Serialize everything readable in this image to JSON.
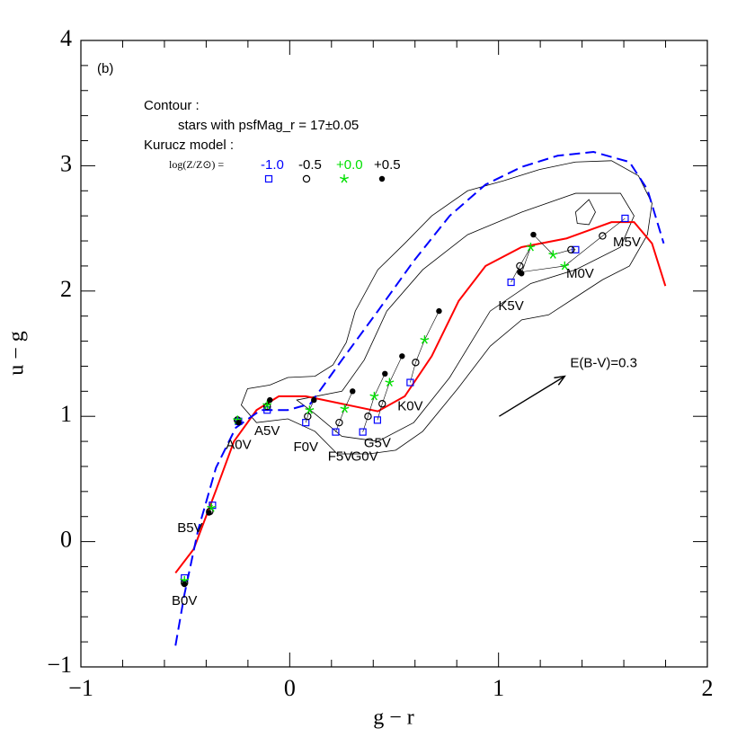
{
  "chart_data": {
    "type": "scatter",
    "panel_label": "(b)",
    "xlabel": "g − r",
    "ylabel": "u − g",
    "xlim": [
      -1,
      2
    ],
    "ylim": [
      -1,
      4
    ],
    "xticks": [
      {
        "value": -1,
        "label": "−1"
      },
      0,
      1,
      2
    ],
    "yticks": [
      {
        "value": -1,
        "label": "−1"
      },
      0,
      1,
      2,
      3,
      4
    ],
    "legend": {
      "contour_title": "Contour :",
      "contour_desc": "stars with psfMag_r = 17±0.05",
      "model_title": "Kurucz model :",
      "metallicity_label": "log(Z/Z⊙) ="
    },
    "spectral_types": [
      "B0V",
      "B5V",
      "A0V",
      "A5V",
      "F0V",
      "F5V",
      "G0V",
      "G5V",
      "K0V",
      "K5V",
      "M0V",
      "M5V"
    ],
    "series": [
      {
        "name": "-1.0",
        "color": "#0000ff",
        "marker": "square",
        "x": [
          -0.504,
          -0.37,
          -0.245,
          -0.108,
          0.077,
          0.22,
          0.35,
          0.42,
          0.577,
          1.06,
          1.369,
          1.606
        ],
        "y": [
          -0.29,
          0.29,
          0.96,
          1.05,
          0.95,
          0.875,
          0.875,
          0.97,
          1.27,
          2.07,
          2.33,
          2.58
        ]
      },
      {
        "name": "-0.5",
        "color": "#000000",
        "marker": "circle",
        "x": [
          -0.504,
          -0.383,
          -0.25,
          -0.108,
          0.086,
          0.237,
          0.375,
          0.443,
          0.603,
          1.102,
          1.347,
          1.498
        ],
        "y": [
          -0.33,
          0.24,
          0.97,
          1.08,
          1.0,
          0.95,
          1.0,
          1.1,
          1.43,
          2.2,
          2.33,
          2.44
        ]
      },
      {
        "name": "+0.0",
        "color": "#00e000",
        "marker": "star",
        "x": [
          -0.504,
          -0.375,
          -0.25,
          -0.108,
          0.095,
          0.263,
          0.405,
          0.478,
          0.646,
          1.154,
          1.261,
          1.317
        ],
        "y": [
          -0.31,
          0.27,
          0.97,
          1.09,
          1.05,
          1.06,
          1.16,
          1.27,
          1.61,
          2.35,
          2.29,
          2.2
        ]
      },
      {
        "name": "+0.5",
        "color": "#000000",
        "marker": "dot",
        "x": [
          -0.504,
          -0.387,
          -0.245,
          -0.095,
          0.116,
          0.301,
          0.456,
          0.538,
          0.715,
          1.11,
          1.167,
          1.102
        ],
        "y": [
          -0.34,
          0.23,
          0.95,
          1.13,
          1.13,
          1.2,
          1.34,
          1.48,
          1.84,
          2.14,
          2.45,
          2.15
        ]
      }
    ],
    "curves": [
      {
        "color": "#ff0000",
        "style": "solid",
        "x": [
          -0.547,
          -0.46,
          -0.353,
          -0.267,
          -0.159,
          -0.052,
          0.077,
          0.25,
          0.422,
          0.551,
          0.68,
          0.809,
          0.938,
          1.11,
          1.326,
          1.541,
          1.649,
          1.735,
          1.799
        ],
        "y": [
          -0.25,
          -0.06,
          0.41,
          0.8,
          1.05,
          1.16,
          1.16,
          1.1,
          1.04,
          1.16,
          1.48,
          1.92,
          2.2,
          2.35,
          2.42,
          2.55,
          2.55,
          2.38,
          2.04
        ]
      },
      {
        "color": "#0000ff",
        "style": "dashed",
        "x": [
          -0.547,
          -0.504,
          -0.439,
          -0.353,
          -0.258,
          -0.138,
          -0.009,
          0.099,
          0.25,
          0.422,
          0.594,
          0.766,
          0.938,
          1.11,
          1.283,
          1.455,
          1.627,
          1.713,
          1.791
        ],
        "y": [
          -0.83,
          -0.42,
          0.09,
          0.59,
          0.91,
          1.05,
          1.05,
          1.1,
          1.45,
          1.84,
          2.24,
          2.6,
          2.85,
          2.99,
          3.08,
          3.11,
          3.03,
          2.81,
          2.38
        ]
      }
    ],
    "contour_color": "#000000",
    "contours": [
      {
        "x": [
          -0.232,
          -0.202,
          -0.095,
          -0.009,
          0.121,
          0.207,
          0.271,
          0.314,
          0.422,
          0.551,
          0.68,
          0.852,
          1.024,
          1.196,
          1.369,
          1.541,
          1.67,
          1.735,
          1.713,
          1.627,
          1.498,
          1.369,
          1.24,
          1.111,
          0.96,
          0.809,
          0.637,
          0.508,
          0.379,
          0.228,
          0.121,
          -0.009,
          -0.159
        ],
        "y": [
          1.09,
          1.22,
          1.25,
          1.31,
          1.32,
          1.41,
          1.59,
          1.84,
          2.17,
          2.38,
          2.6,
          2.8,
          2.88,
          2.97,
          3.03,
          3.04,
          2.92,
          2.7,
          2.45,
          2.2,
          2.09,
          1.95,
          1.81,
          1.77,
          1.56,
          1.23,
          0.88,
          0.73,
          0.7,
          0.7,
          0.88,
          0.98,
          0.95
        ]
      },
      {
        "x": [
          0.034,
          0.25,
          0.357,
          0.465,
          0.637,
          0.852,
          1.111,
          1.369,
          1.584,
          1.649,
          1.584,
          1.369,
          1.154,
          0.96,
          0.766,
          0.594,
          0.422,
          0.25,
          0.121
        ],
        "y": [
          1.13,
          1.2,
          1.45,
          1.84,
          2.17,
          2.45,
          2.63,
          2.78,
          2.78,
          2.6,
          2.35,
          2.17,
          2.06,
          1.84,
          1.31,
          0.95,
          0.8,
          0.84,
          1.02
        ]
      },
      {
        "x": [
          1.369,
          1.433,
          1.464,
          1.433,
          1.377
        ],
        "y": [
          2.63,
          2.73,
          2.63,
          2.53,
          2.54
        ]
      }
    ],
    "reddening_vector": {
      "label": "E(B-V)=0.3",
      "x": [
        1.003,
        1.317
      ],
      "y": [
        1.0,
        1.32
      ]
    }
  }
}
